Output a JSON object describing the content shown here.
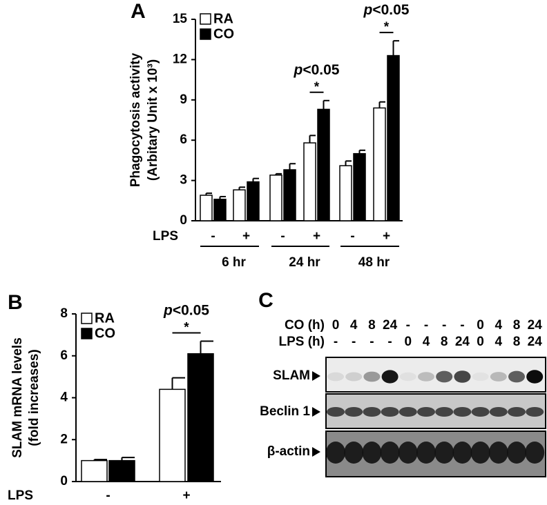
{
  "chart_data": [
    {
      "type": "bar",
      "panel": "A",
      "ylabel": [
        "Phagocytosis activity",
        "(Arbitary Unit x 10³)"
      ],
      "xlabel": "LPS",
      "categories": [
        "-",
        "+",
        "-",
        "+",
        "-",
        "+"
      ],
      "groups": [
        "6 hr",
        "24 hr",
        "48 hr"
      ],
      "series": [
        {
          "name": "RA",
          "color": "#ffffff",
          "values": [
            1.9,
            2.3,
            3.4,
            5.8,
            4.1,
            8.4
          ],
          "errors": [
            0.15,
            0.2,
            0.1,
            0.55,
            0.35,
            0.45
          ]
        },
        {
          "name": "CO",
          "color": "#000000",
          "values": [
            1.6,
            2.9,
            3.8,
            8.3,
            5.0,
            12.3
          ],
          "errors": [
            0.2,
            0.25,
            0.45,
            0.65,
            0.25,
            1.1
          ]
        }
      ],
      "ylim": [
        0,
        15
      ],
      "yticks": [
        0,
        3,
        6,
        9,
        12,
        15
      ],
      "annotations": [
        {
          "text": "p<0.05",
          "mark": "*"
        },
        {
          "text": "p<0.05",
          "mark": "*"
        }
      ]
    },
    {
      "type": "bar",
      "panel": "B",
      "ylabel": [
        "SLAM mRNA levels",
        "(fold increases)"
      ],
      "xlabel": "LPS",
      "categories": [
        "-",
        "+"
      ],
      "series": [
        {
          "name": "RA",
          "color": "#ffffff",
          "values": [
            1.0,
            4.4
          ],
          "errors": [
            0.05,
            0.55
          ]
        },
        {
          "name": "CO",
          "color": "#000000",
          "values": [
            1.0,
            6.1
          ],
          "errors": [
            0.15,
            0.6
          ]
        }
      ],
      "ylim": [
        0,
        8
      ],
      "yticks": [
        0,
        2,
        4,
        6,
        8
      ],
      "annotations": [
        {
          "text": "p<0.05",
          "mark": "*"
        }
      ]
    }
  ],
  "blot": {
    "panel": "C",
    "rows": [
      {
        "label": "CO (h)",
        "cells": [
          "0",
          "4",
          "8",
          "24",
          "-",
          "-",
          "-",
          "-",
          "0",
          "4",
          "8",
          "24"
        ]
      },
      {
        "label": "LPS (h)",
        "cells": [
          "-",
          "-",
          "-",
          "-",
          "0",
          "4",
          "8",
          "24",
          "0",
          "4",
          "8",
          "24"
        ]
      }
    ],
    "bands": [
      "SLAM",
      "Beclin 1",
      "β-actin"
    ]
  }
}
